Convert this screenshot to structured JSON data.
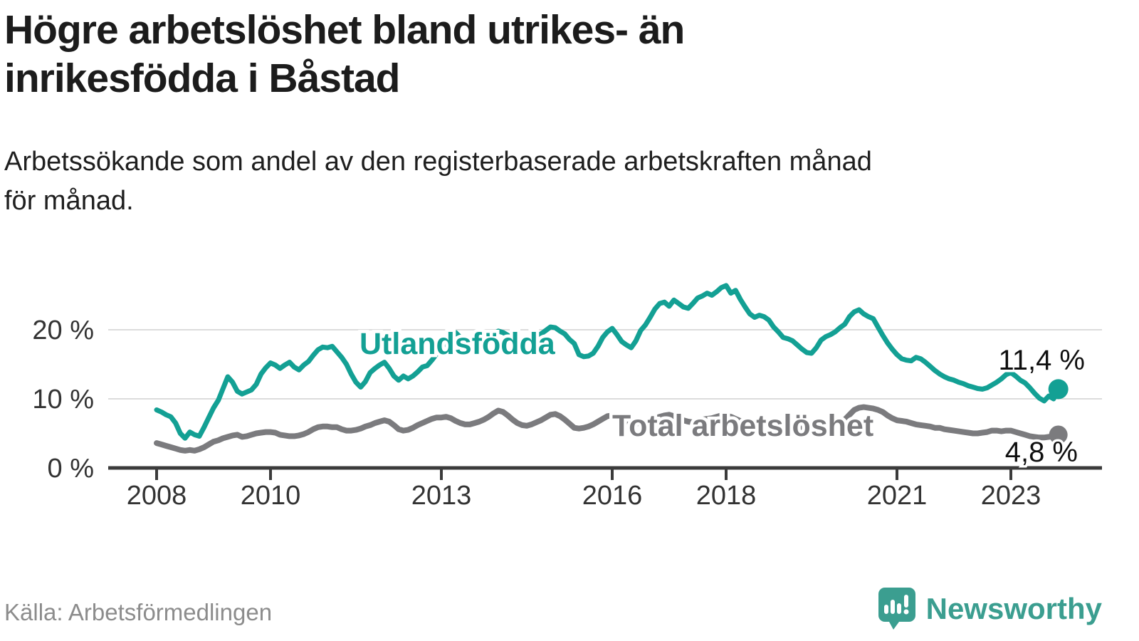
{
  "header": {
    "title_lines": [
      "Högre arbetslöshet bland utrikes- än",
      "inrikesfödda i Båstad"
    ],
    "subtitle_lines": [
      "Arbetssökande som andel av den registerbaserade arbetskraften månad",
      "för månad."
    ]
  },
  "footer": {
    "source": "Källa: Arbetsförmedlingen",
    "brand": "Newsworthy",
    "brand_icon": "newsworthy-speech-bubble-bar-chart-icon"
  },
  "colors": {
    "series_teal": "#13a094",
    "series_gray": "#7b7b7e",
    "grid": "#dcdcdc",
    "axis": "#3b3b3b",
    "annotation": "#0f0f0f",
    "logo_teal": "#3b9e90",
    "source_gray": "#8c8c8c",
    "title_text": "#1c1c1c"
  },
  "chart_data": {
    "type": "line",
    "title": "Högre arbetslöshet bland utrikes- än inrikesfödda i Båstad",
    "subtitle": "Arbetssökande som andel av den registerbaserade arbetskraften månad för månad.",
    "frequency": "monthly",
    "x_start": "2008-01",
    "x_end": "2023-11",
    "grid": "horizontal-only",
    "legend_position": "inline-labels",
    "x_tick_years": [
      2008,
      2010,
      2013,
      2016,
      2018,
      2021,
      2023
    ],
    "y_ticks": [
      {
        "value": 0,
        "label": "0 %"
      },
      {
        "value": 10,
        "label": "10 %"
      },
      {
        "value": 20,
        "label": "20 %"
      }
    ],
    "ylim": [
      0,
      27.5
    ],
    "series": [
      {
        "name": "Utlandsfödda",
        "color": "#13a094",
        "end_label": "11,4 %",
        "last_value": 11.4,
        "values": [
          8.4,
          8.1,
          7.7,
          7.4,
          6.5,
          5.0,
          4.3,
          5.2,
          4.8,
          4.6,
          5.9,
          7.3,
          8.7,
          9.8,
          11.5,
          13.2,
          12.4,
          11.1,
          10.7,
          11.0,
          11.3,
          12.1,
          13.6,
          14.5,
          15.2,
          14.9,
          14.4,
          14.9,
          15.3,
          14.6,
          14.2,
          14.9,
          15.4,
          16.3,
          17.1,
          17.5,
          17.4,
          17.6,
          16.8,
          16.0,
          15.0,
          13.6,
          12.4,
          11.7,
          12.5,
          13.8,
          14.4,
          14.9,
          15.3,
          14.4,
          13.3,
          12.7,
          13.3,
          12.9,
          13.3,
          13.9,
          14.6,
          14.8,
          15.6,
          16.5,
          17.3,
          18.4,
          19.3,
          19.6,
          18.9,
          18.2,
          17.6,
          17.9,
          18.3,
          18.6,
          19.0,
          19.4,
          19.8,
          19.6,
          19.2,
          18.7,
          18.3,
          18.0,
          18.2,
          18.6,
          19.0,
          19.4,
          19.9,
          20.4,
          20.3,
          19.8,
          19.4,
          18.6,
          18.0,
          16.4,
          16.1,
          16.2,
          16.6,
          17.6,
          18.9,
          19.7,
          20.2,
          19.3,
          18.3,
          17.8,
          17.4,
          18.4,
          19.9,
          20.7,
          21.8,
          23.0,
          23.8,
          24.0,
          23.4,
          24.3,
          23.8,
          23.3,
          23.1,
          23.8,
          24.6,
          24.9,
          25.3,
          25.0,
          25.5,
          26.1,
          26.4,
          25.3,
          25.7,
          24.4,
          23.3,
          22.3,
          21.8,
          22.1,
          21.9,
          21.4,
          20.4,
          19.7,
          18.9,
          18.7,
          18.4,
          17.8,
          17.2,
          16.7,
          16.6,
          17.4,
          18.5,
          19.0,
          19.3,
          19.7,
          20.3,
          20.8,
          21.9,
          22.6,
          22.9,
          22.3,
          21.9,
          21.6,
          20.4,
          19.2,
          18.1,
          17.2,
          16.4,
          15.8,
          15.6,
          15.5,
          16.0,
          15.8,
          15.3,
          14.7,
          14.1,
          13.6,
          13.2,
          12.9,
          12.7,
          12.4,
          12.2,
          11.9,
          11.7,
          11.5,
          11.4,
          11.6,
          12.0,
          12.4,
          12.9,
          13.5,
          13.8,
          13.3,
          12.7,
          12.3,
          11.6,
          10.8,
          10.1,
          9.7,
          10.4,
          10.0,
          11.4
        ]
      },
      {
        "name": "Total arbetslöshet",
        "color": "#7b7b7e",
        "end_label": "4,8 %",
        "last_value": 4.8,
        "values": [
          3.6,
          3.4,
          3.2,
          3.0,
          2.8,
          2.6,
          2.5,
          2.6,
          2.5,
          2.7,
          3.0,
          3.4,
          3.8,
          4.0,
          4.3,
          4.5,
          4.7,
          4.8,
          4.5,
          4.6,
          4.8,
          5.0,
          5.1,
          5.2,
          5.2,
          5.1,
          4.8,
          4.7,
          4.6,
          4.6,
          4.7,
          4.9,
          5.2,
          5.6,
          5.9,
          6.0,
          6.0,
          5.9,
          5.9,
          5.6,
          5.4,
          5.4,
          5.5,
          5.7,
          6.0,
          6.2,
          6.5,
          6.7,
          6.9,
          6.7,
          6.2,
          5.6,
          5.4,
          5.5,
          5.8,
          6.2,
          6.5,
          6.8,
          7.1,
          7.3,
          7.3,
          7.4,
          7.2,
          6.8,
          6.5,
          6.3,
          6.3,
          6.5,
          6.7,
          7.0,
          7.4,
          7.9,
          8.3,
          8.1,
          7.6,
          7.0,
          6.5,
          6.2,
          6.1,
          6.3,
          6.6,
          6.9,
          7.3,
          7.7,
          7.8,
          7.5,
          7.0,
          6.4,
          5.8,
          5.7,
          5.8,
          6.0,
          6.3,
          6.7,
          7.1,
          7.5,
          7.6,
          7.4,
          7.1,
          6.8,
          6.5,
          6.4,
          6.6,
          6.8,
          7.0,
          7.2,
          7.4,
          7.6,
          7.7,
          7.5,
          7.2,
          6.9,
          6.7,
          6.6,
          6.8,
          7.0,
          7.1,
          7.2,
          7.4,
          7.6,
          7.6,
          7.4,
          7.1,
          6.8,
          6.5,
          6.3,
          6.4,
          6.5,
          6.4,
          6.3,
          6.4,
          6.5,
          6.6,
          6.5,
          6.3,
          6.1,
          5.9,
          5.8,
          5.9,
          6.1,
          6.2,
          6.3,
          6.5,
          6.6,
          6.8,
          7.0,
          7.7,
          8.4,
          8.7,
          8.8,
          8.7,
          8.6,
          8.4,
          8.1,
          7.6,
          7.2,
          6.9,
          6.8,
          6.7,
          6.5,
          6.3,
          6.2,
          6.1,
          6.0,
          5.8,
          5.8,
          5.6,
          5.5,
          5.4,
          5.3,
          5.2,
          5.1,
          5.0,
          5.0,
          5.1,
          5.2,
          5.4,
          5.4,
          5.3,
          5.4,
          5.4,
          5.2,
          5.0,
          4.8,
          4.6,
          4.5,
          4.4,
          4.4,
          4.5,
          4.6,
          4.8
        ]
      }
    ]
  }
}
